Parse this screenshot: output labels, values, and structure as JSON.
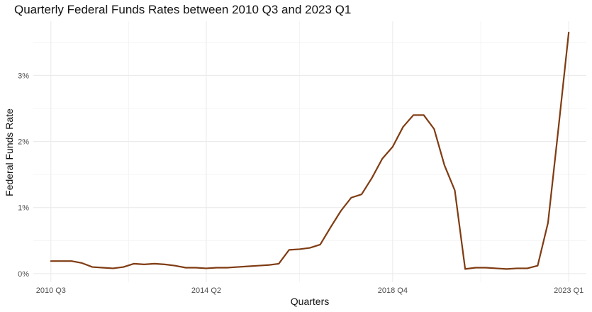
{
  "chart_data": {
    "type": "line",
    "title": "Quarterly Federal Funds Rates between 2010 Q3 and 2023 Q1",
    "xlabel": "Quarters",
    "ylabel": "Federal Funds Rate",
    "x_ticks": [
      "2010 Q3",
      "2014 Q2",
      "2018 Q4",
      "2023 Q1"
    ],
    "x_tick_index": [
      0,
      15,
      33,
      50
    ],
    "y_ticks": [
      0,
      1,
      2,
      3
    ],
    "y_tick_labels": [
      "0%",
      "1%",
      "2%",
      "3%"
    ],
    "ylim": [
      -0.13,
      3.82
    ],
    "xlim": [
      -1.7,
      51.7
    ],
    "grid": true,
    "line_color": "#7f3b12",
    "series": [
      {
        "values": [
          0.19,
          0.19,
          0.19,
          0.16,
          0.1,
          0.09,
          0.08,
          0.1,
          0.15,
          0.14,
          0.15,
          0.14,
          0.12,
          0.09,
          0.09,
          0.08,
          0.09,
          0.09,
          0.1,
          0.11,
          0.12,
          0.13,
          0.15,
          0.36,
          0.37,
          0.39,
          0.44,
          0.7,
          0.95,
          1.15,
          1.2,
          1.45,
          1.74,
          1.92,
          2.22,
          2.4,
          2.4,
          2.19,
          1.64,
          1.26,
          0.07,
          0.09,
          0.09,
          0.08,
          0.07,
          0.08,
          0.08,
          0.12,
          0.77,
          2.19,
          3.65
        ]
      }
    ]
  }
}
